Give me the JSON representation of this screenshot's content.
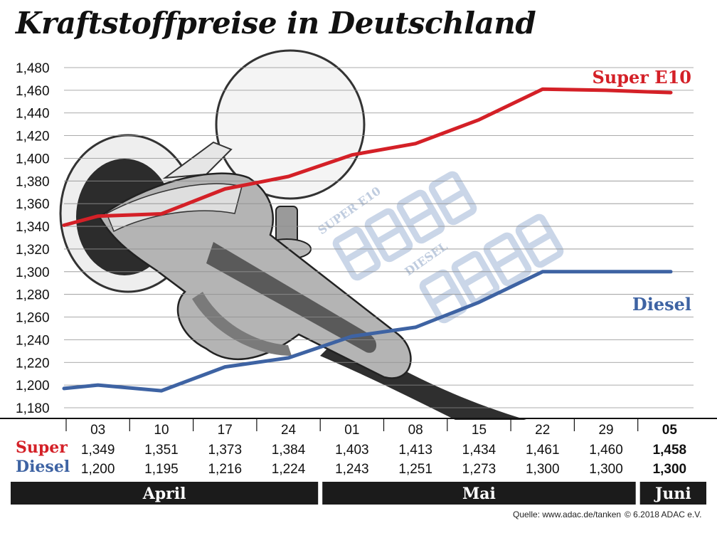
{
  "title": "Kraftstoffpreise in Deutschland",
  "source": "Quelle: www.adac.de/tanken",
  "copyright": "© 6.2018  ADAC e.V.",
  "colors": {
    "super": "#d42027",
    "diesel": "#3e63a3",
    "grid": "#8f8f8f",
    "month_bar": "#1b1b1b"
  },
  "decoration": {
    "pump_display_super": "SUPER E10",
    "pump_display_diesel": "DIESEL"
  },
  "chart_data": {
    "type": "line",
    "title": "Kraftstoffpreise in Deutschland",
    "categories": [
      "03",
      "10",
      "17",
      "24",
      "01",
      "08",
      "15",
      "22",
      "29",
      "05"
    ],
    "months": [
      {
        "name": "April",
        "span": 4
      },
      {
        "name": "Mai",
        "span": 5
      },
      {
        "name": "Juni",
        "span": 1
      }
    ],
    "yticks": [
      "1,480",
      "1,460",
      "1,440",
      "1,420",
      "1,400",
      "1,380",
      "1,360",
      "1,340",
      "1,320",
      "1,300",
      "1,280",
      "1,260",
      "1,240",
      "1,220",
      "1,200",
      "1,180"
    ],
    "ylim": [
      1.17,
      1.485
    ],
    "grid": true,
    "series": [
      {
        "name": "Super E10",
        "table_label": "Super",
        "color": "#d42027",
        "values": [
          1.349,
          1.351,
          1.373,
          1.384,
          1.403,
          1.413,
          1.434,
          1.461,
          1.46,
          1.458
        ],
        "labels": [
          "1,349",
          "1,351",
          "1,373",
          "1,384",
          "1,403",
          "1,413",
          "1,434",
          "1,461",
          "1,460",
          "1,458"
        ],
        "start_value": 1.341
      },
      {
        "name": "Diesel",
        "table_label": "Diesel",
        "color": "#3e63a3",
        "values": [
          1.2,
          1.195,
          1.216,
          1.224,
          1.243,
          1.251,
          1.273,
          1.3,
          1.3,
          1.3
        ],
        "labels": [
          "1,200",
          "1,195",
          "1,216",
          "1,224",
          "1,243",
          "1,251",
          "1,273",
          "1,300",
          "1,300",
          "1,300"
        ],
        "start_value": 1.197
      }
    ]
  }
}
